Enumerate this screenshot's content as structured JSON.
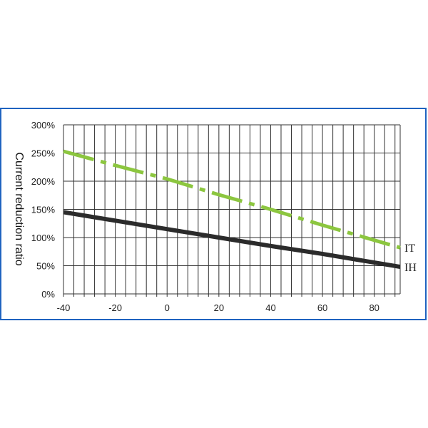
{
  "chart_data": {
    "type": "line",
    "title": "",
    "xlabel": "",
    "ylabel": "Current reduction ratio",
    "xlim": [
      -40,
      90
    ],
    "ylim": [
      0,
      300
    ],
    "x_ticks": [
      -40,
      -20,
      0,
      20,
      40,
      60,
      80
    ],
    "x_tick_labels": [
      "-40",
      "-20",
      "0",
      "20",
      "40",
      "60",
      "80"
    ],
    "y_ticks": [
      0,
      50,
      100,
      150,
      200,
      250,
      300
    ],
    "y_tick_labels": [
      "0%",
      "50%",
      "100%",
      "150%",
      "200%",
      "250%",
      "300%"
    ],
    "x_minor_grid_step": 4,
    "grid": true,
    "legend": "inline labels at right end of lines",
    "series": [
      {
        "name": "IT",
        "color": "#8cc63f",
        "style": "dash-dot",
        "x": [
          -40,
          -20,
          0,
          20,
          40,
          60,
          90
        ],
        "y": [
          253,
          228,
          204,
          176,
          150,
          122,
          82
        ]
      },
      {
        "name": "IH",
        "color": "#2b2b2b",
        "style": "solid",
        "x": [
          -40,
          -20,
          0,
          20,
          40,
          60,
          90
        ],
        "y": [
          145,
          130,
          115,
          100,
          85,
          71,
          48
        ]
      }
    ]
  }
}
